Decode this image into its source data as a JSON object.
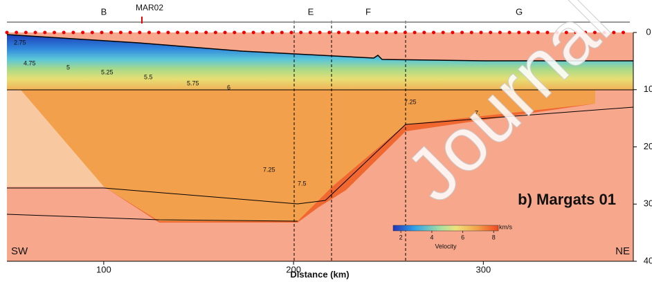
{
  "chart_data": {
    "type": "section",
    "title": "b) Margats 01",
    "x_label": "Distance (km)",
    "xlim": [
      49,
      379
    ],
    "xticks": [
      100,
      200,
      300
    ],
    "ylim": [
      0,
      40
    ],
    "yticks": [
      0,
      10,
      20,
      30,
      40
    ],
    "segments": [
      "B",
      "E",
      "F",
      "G"
    ],
    "station": "MAR02",
    "sides": [
      "SW",
      "NE"
    ],
    "contour_labels": [
      "2.75",
      "4.75",
      "5",
      "5.25",
      "5.5",
      "5.75",
      "6",
      "7.25",
      "7.25",
      "7.5",
      "7."
    ],
    "colorbar": {
      "label": "Velocity",
      "unit": "km/s",
      "lim": [
        1.5,
        8.3
      ],
      "ticks": [
        2,
        4,
        6,
        8
      ]
    },
    "watermark": "Journal"
  }
}
